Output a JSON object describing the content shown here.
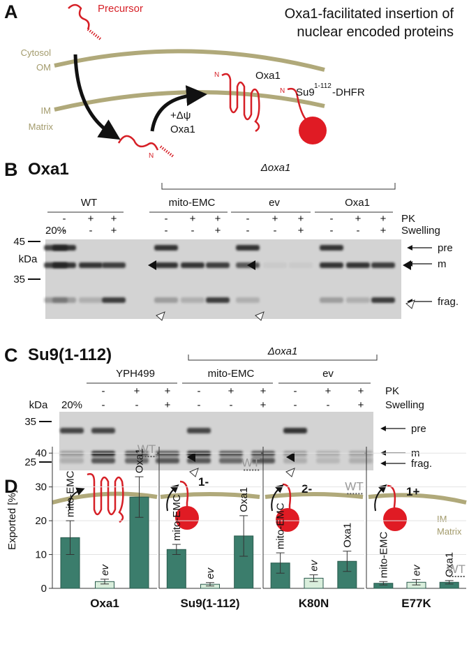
{
  "panel_a": {
    "label": "A",
    "title": [
      "Oxa1-facilitated insertion of",
      "nuclear encoded proteins"
    ],
    "precursor": "Precursor",
    "cytosol": "Cytosol",
    "om": "OM",
    "im": "IM",
    "matrix": "Matrix",
    "psi": "+Δψ",
    "insertase": "Oxa1",
    "oxa1": "Oxa1",
    "n": "N",
    "su9": "Su9",
    "su9_sup": "1-112",
    "dhfr": "-DHFR"
  },
  "panel_b": {
    "label": "B",
    "title": "Oxa1",
    "mutant": "Δoxa1",
    "groups": [
      "WT",
      "mito-EMC",
      "ev",
      "Oxa1"
    ],
    "pk_label": "PK",
    "swelling_label": "Swelling",
    "pk": [
      "-",
      "+",
      "+",
      "-",
      "+",
      "+",
      "-",
      "+",
      "+",
      "-",
      "+",
      "+"
    ],
    "swelling": [
      "-",
      "-",
      "+",
      "-",
      "-",
      "+",
      "-",
      "-",
      "+",
      "-",
      "-",
      "+"
    ],
    "input": "20%",
    "kda": "kDa",
    "markers": [
      45,
      35
    ],
    "pre": "pre",
    "m": "m",
    "frag": "frag."
  },
  "panel_c": {
    "label": "C",
    "title": "Su9(1-112)",
    "mutant": "Δoxa1",
    "groups": [
      "YPH499",
      "mito-EMC",
      "ev"
    ],
    "pk_label": "PK",
    "swelling_label": "Swelling",
    "pk": [
      "-",
      "+",
      "+",
      "-",
      "+",
      "+",
      "-",
      "+",
      "+"
    ],
    "swelling": [
      "-",
      "-",
      "+",
      "-",
      "-",
      "+",
      "-",
      "-",
      "+"
    ],
    "input": "20%",
    "kda": "kDa",
    "markers": [
      35,
      25
    ],
    "pre": "pre",
    "m": "m",
    "frag": "frag."
  },
  "panel_d": {
    "label": "D",
    "ylabel": "Exported [%]",
    "charges": [
      "1-",
      "2-",
      "1+"
    ],
    "im": "IM",
    "matrix": "Matrix"
  },
  "chart_data": [
    {
      "type": "bar",
      "title": "Oxa1",
      "categories": [
        "mito-EMC",
        "ev",
        "Oxa1"
      ],
      "values": [
        15,
        2,
        27
      ],
      "errors": [
        5,
        0.7,
        6
      ],
      "colors": [
        "#3b7d6c",
        "#d9eedc",
        "#3b7d6c"
      ],
      "wt": {
        "label": "WT",
        "value": 39
      },
      "ylim": [
        0,
        45
      ],
      "yticks": [
        0,
        10,
        20,
        30,
        40
      ],
      "grid": true
    },
    {
      "type": "bar",
      "title": "Su9(1-112)",
      "categories": [
        "mito-EMC",
        "ev",
        "Oxa1"
      ],
      "values": [
        11.5,
        1.2,
        15.5
      ],
      "errors": [
        1.5,
        0.5,
        6
      ],
      "colors": [
        "#3b7d6c",
        "#d9eedc",
        "#3b7d6c"
      ],
      "wt": {
        "label": "WT",
        "value": 35
      },
      "ylim": [
        0,
        45
      ],
      "yticks": [
        0,
        10,
        20,
        30,
        40
      ],
      "grid": true
    },
    {
      "type": "bar",
      "title": "K80N",
      "categories": [
        "mito-EMC",
        "ev",
        "Oxa1"
      ],
      "values": [
        7.5,
        3,
        8
      ],
      "errors": [
        3,
        1,
        3
      ],
      "colors": [
        "#3b7d6c",
        "#d9eedc",
        "#3b7d6c"
      ],
      "wt": {
        "label": "WT",
        "value": 28
      },
      "ylim": [
        0,
        45
      ],
      "yticks": [
        0,
        10,
        20,
        30,
        40
      ],
      "grid": true
    },
    {
      "type": "bar",
      "title": "E77K",
      "categories": [
        "mito-EMC",
        "ev",
        "Oxa1"
      ],
      "values": [
        1.5,
        1.8,
        1.8
      ],
      "errors": [
        0.5,
        0.8,
        0.5
      ],
      "colors": [
        "#3b7d6c",
        "#d9eedc",
        "#3b7d6c"
      ],
      "wt": {
        "label": "WT",
        "value": 3.5
      },
      "ylim": [
        0,
        45
      ],
      "yticks": [
        0,
        10,
        20,
        30,
        40
      ],
      "grid": true
    }
  ]
}
